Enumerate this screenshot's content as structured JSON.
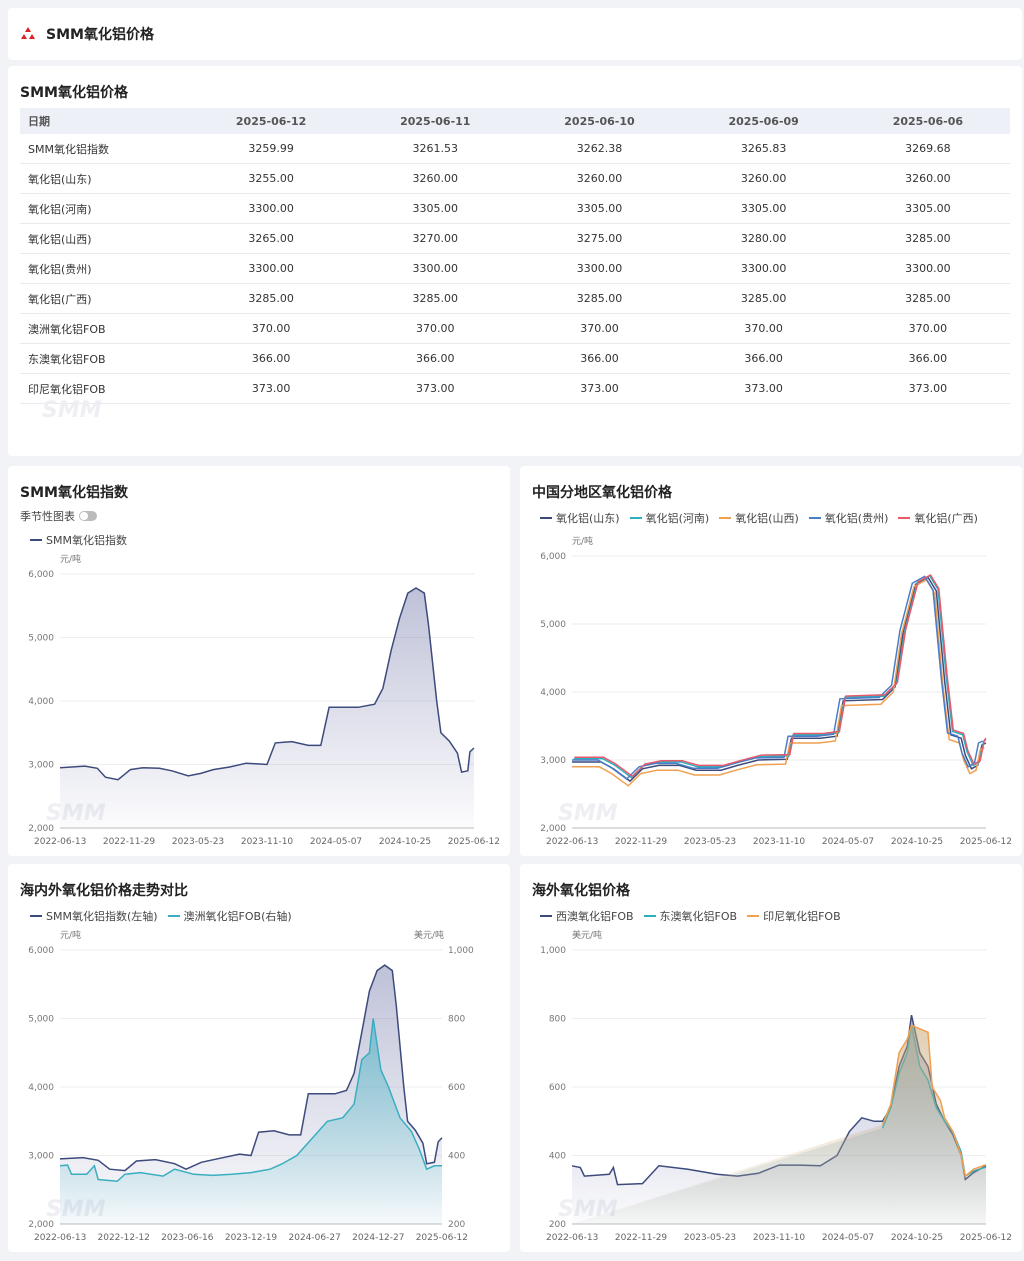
{
  "header": {
    "title": "SMM氧化铝价格",
    "logo_icon": "smm-logo-icon",
    "logo_color": "#e02020"
  },
  "table_section": {
    "title": "SMM氧化铝价格",
    "columns": [
      "日期",
      "2025-06-12",
      "2025-06-11",
      "2025-06-10",
      "2025-06-09",
      "2025-06-06"
    ],
    "rows": [
      [
        "SMM氧化铝指数",
        "3259.99",
        "3261.53",
        "3262.38",
        "3265.83",
        "3269.68"
      ],
      [
        "氧化铝(山东)",
        "3255.00",
        "3260.00",
        "3260.00",
        "3260.00",
        "3260.00"
      ],
      [
        "氧化铝(河南)",
        "3300.00",
        "3305.00",
        "3305.00",
        "3305.00",
        "3305.00"
      ],
      [
        "氧化铝(山西)",
        "3265.00",
        "3270.00",
        "3275.00",
        "3280.00",
        "3285.00"
      ],
      [
        "氧化铝(贵州)",
        "3300.00",
        "3300.00",
        "3300.00",
        "3300.00",
        "3300.00"
      ],
      [
        "氧化铝(广西)",
        "3285.00",
        "3285.00",
        "3285.00",
        "3285.00",
        "3285.00"
      ],
      [
        "澳洲氧化铝FOB",
        "370.00",
        "370.00",
        "370.00",
        "370.00",
        "370.00"
      ],
      [
        "东澳氧化铝FOB",
        "366.00",
        "366.00",
        "366.00",
        "366.00",
        "366.00"
      ],
      [
        "印尼氧化铝FOB",
        "373.00",
        "373.00",
        "373.00",
        "373.00",
        "373.00"
      ]
    ],
    "watermark": "SMM"
  },
  "charts": {
    "c1": {
      "title": "SMM氧化铝指数",
      "toggle_label": "季节性图表"
    },
    "c2": {
      "title": "中国分地区氧化铝价格"
    },
    "c3": {
      "title": "海内外氧化铝价格走势对比"
    },
    "c4": {
      "title": "海外氧化铝价格"
    }
  },
  "chart_data": [
    {
      "type": "area",
      "ylabel": "元/吨",
      "ylim": [
        2000,
        6000
      ],
      "yticks": [
        "6,000",
        "5,000",
        "4,000",
        "3,000",
        "2,000"
      ],
      "xticks": [
        "2022-06-13",
        "2022-11-29",
        "2023-05-23",
        "2023-11-10",
        "2024-05-07",
        "2024-10-25",
        "2025-06-12"
      ],
      "grid": true,
      "series": [
        {
          "name": "SMM氧化铝指数",
          "color": "#3d4a7c",
          "points": [
            [
              0,
              2950
            ],
            [
              0.06,
              2975
            ],
            [
              0.09,
              2940
            ],
            [
              0.11,
              2800
            ],
            [
              0.14,
              2760
            ],
            [
              0.17,
              2920
            ],
            [
              0.2,
              2950
            ],
            [
              0.24,
              2940
            ],
            [
              0.27,
              2900
            ],
            [
              0.31,
              2820
            ],
            [
              0.34,
              2860
            ],
            [
              0.37,
              2920
            ],
            [
              0.41,
              2960
            ],
            [
              0.45,
              3020
            ],
            [
              0.5,
              3000
            ],
            [
              0.52,
              3340
            ],
            [
              0.56,
              3360
            ],
            [
              0.6,
              3300
            ],
            [
              0.63,
              3300
            ],
            [
              0.65,
              3900
            ],
            [
              0.72,
              3900
            ],
            [
              0.76,
              3950
            ],
            [
              0.78,
              4200
            ],
            [
              0.8,
              4800
            ],
            [
              0.82,
              5300
            ],
            [
              0.84,
              5700
            ],
            [
              0.86,
              5780
            ],
            [
              0.88,
              5700
            ],
            [
              0.89,
              5200
            ],
            [
              0.91,
              4000
            ],
            [
              0.92,
              3500
            ],
            [
              0.94,
              3370
            ],
            [
              0.96,
              3180
            ],
            [
              0.97,
              2880
            ],
            [
              0.985,
              2900
            ],
            [
              0.99,
              3200
            ],
            [
              1,
              3260
            ]
          ]
        }
      ]
    },
    {
      "type": "line",
      "ylabel": "元/吨",
      "ylim": [
        2000,
        6000
      ],
      "yticks": [
        "6,000",
        "5,000",
        "4,000",
        "3,000",
        "2,000"
      ],
      "xticks": [
        "2022-06-13",
        "2022-11-29",
        "2023-05-23",
        "2023-11-10",
        "2024-05-07",
        "2024-10-25",
        "2025-06-12"
      ],
      "grid": true,
      "legend_position": "top",
      "series": [
        {
          "name": "氧化铝(山东)",
          "color": "#3d4a7c"
        },
        {
          "name": "氧化铝(河南)",
          "color": "#2bb0c0"
        },
        {
          "name": "氧化铝(山西)",
          "color": "#f0a050"
        },
        {
          "name": "氧化铝(贵州)",
          "color": "#4a7cc8"
        },
        {
          "name": "氧化铝(广西)",
          "color": "#e85a6a"
        }
      ]
    },
    {
      "type": "area",
      "ylabel_left": "元/吨",
      "ylabel_right": "美元/吨",
      "ylim_left": [
        2000,
        6000
      ],
      "ylim_right": [
        200,
        1000
      ],
      "yticks_left": [
        "6,000",
        "5,000",
        "4,000",
        "3,000",
        "2,000"
      ],
      "yticks_right": [
        "1,000",
        "800",
        "600",
        "400",
        "200"
      ],
      "xticks": [
        "2022-06-13",
        "2022-12-12",
        "2023-06-16",
        "2023-12-19",
        "2024-06-27",
        "2024-12-27",
        "2025-06-12"
      ],
      "grid": true,
      "series": [
        {
          "name": "SMM氧化铝指数(左轴)",
          "color": "#3d4a7c"
        },
        {
          "name": "澳洲氧化铝FOB(右轴)",
          "color": "#3aaec0"
        }
      ]
    },
    {
      "type": "area",
      "ylabel": "美元/吨",
      "ylim": [
        200,
        1000
      ],
      "yticks": [
        "1,000",
        "800",
        "600",
        "400",
        "200"
      ],
      "xticks": [
        "2022-06-13",
        "2022-11-29",
        "2023-05-23",
        "2023-11-10",
        "2024-05-07",
        "2024-10-25",
        "2025-06-12"
      ],
      "grid": true,
      "series": [
        {
          "name": "西澳氧化铝FOB",
          "color": "#3d4a7c"
        },
        {
          "name": "东澳氧化铝FOB",
          "color": "#2bb0c0"
        },
        {
          "name": "印尼氧化铝FOB",
          "color": "#f0a050"
        }
      ]
    }
  ]
}
